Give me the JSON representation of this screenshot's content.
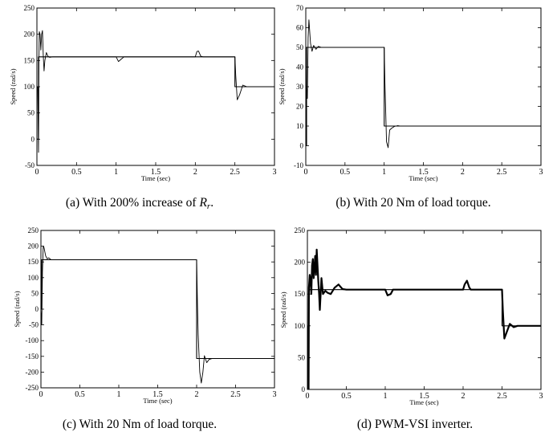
{
  "captions": {
    "a": {
      "pre": "(a) With 200% increase of ",
      "var": "R",
      "sub": "r",
      "post": "."
    },
    "b": "(b) With 20 Nm of load torque.",
    "c": "(c) With 20 Nm of load torque.",
    "d": "(d) PWM-VSI inverter."
  },
  "chart_data": [
    {
      "id": "a",
      "type": "line",
      "xlabel": "Time (sec)",
      "ylabel": "Speed  (rad/s)",
      "xlim": [
        0,
        3
      ],
      "ylim": [
        -50,
        250
      ],
      "xticks": [
        0,
        0.5,
        1,
        1.5,
        2,
        2.5,
        3
      ],
      "xtick_labels": [
        "0",
        "0.5",
        "1",
        "1.5",
        "2",
        "2.5",
        "3"
      ],
      "yticks": [
        -50,
        0,
        50,
        100,
        150,
        200,
        250
      ],
      "ytick_labels": [
        "-50",
        "0",
        "50",
        "100",
        "150",
        "200",
        "250"
      ],
      "series": [
        {
          "role": "reference",
          "x": [
            0,
            0.02,
            0.02,
            2.5,
            2.5,
            3
          ],
          "y": [
            0,
            0,
            157,
            157,
            100,
            100
          ]
        },
        {
          "role": "response",
          "x": [
            0,
            0.01,
            0.02,
            0.025,
            0.03,
            0.04,
            0.05,
            0.06,
            0.07,
            0.08,
            0.09,
            0.1,
            0.12,
            0.14,
            0.16,
            0.2,
            0.3,
            1.0,
            1.03,
            1.06,
            1.1,
            1.2,
            2.0,
            2.02,
            2.04,
            2.07,
            2.1,
            2.5,
            2.51,
            2.53,
            2.56,
            2.6,
            2.65,
            2.7,
            3.0
          ],
          "y": [
            100,
            100,
            -25,
            150,
            205,
            200,
            170,
            200,
            207,
            160,
            130,
            150,
            165,
            158,
            156,
            157,
            157,
            157,
            148,
            152,
            157,
            157,
            157,
            167,
            168,
            158,
            157,
            157,
            122,
            75,
            85,
            103,
            100,
            100,
            100
          ]
        }
      ]
    },
    {
      "id": "b",
      "type": "line",
      "xlabel": "Time (sec)",
      "ylabel": "Speed  (rad/s)",
      "xlim": [
        0,
        3
      ],
      "ylim": [
        -10,
        70
      ],
      "xticks": [
        0,
        0.5,
        1,
        1.5,
        2,
        2.5,
        3
      ],
      "xtick_labels": [
        "0",
        "0.5",
        "1",
        "1.5",
        "2",
        "2.5",
        "3"
      ],
      "yticks": [
        -10,
        0,
        10,
        20,
        30,
        40,
        50,
        60,
        70
      ],
      "ytick_labels": [
        "-10",
        "0",
        "10",
        "20",
        "30",
        "40",
        "50",
        "60",
        "70"
      ],
      "series": [
        {
          "role": "reference",
          "x": [
            0,
            0.01,
            0.01,
            1.0,
            1.0,
            3
          ],
          "y": [
            0,
            0,
            50,
            50,
            10,
            10
          ]
        },
        {
          "role": "response",
          "x": [
            0,
            0.01,
            0.02,
            0.03,
            0.04,
            0.05,
            0.06,
            0.08,
            0.1,
            0.13,
            0.16,
            0.2,
            0.3,
            1.0,
            1.01,
            1.03,
            1.05,
            1.07,
            1.1,
            1.13,
            1.17,
            1.2,
            3.0
          ],
          "y": [
            0,
            30,
            24,
            55,
            64,
            58,
            52,
            48,
            51,
            49,
            50.5,
            50,
            50,
            50,
            32,
            2,
            -1,
            8,
            9,
            9.8,
            10.2,
            10,
            10
          ]
        }
      ]
    },
    {
      "id": "c",
      "type": "line",
      "xlabel": "Time (sec)",
      "ylabel": "Speed  (rad/s)",
      "xlim": [
        0,
        3
      ],
      "ylim": [
        -250,
        250
      ],
      "xticks": [
        0,
        0.5,
        1,
        1.5,
        2,
        2.5,
        3
      ],
      "xtick_labels": [
        "0",
        "0.5",
        "1",
        "1.5",
        "2",
        "2.5",
        "3"
      ],
      "yticks": [
        -250,
        -200,
        -150,
        -100,
        -50,
        0,
        50,
        100,
        150,
        200,
        250
      ],
      "ytick_labels": [
        "-250",
        "-200",
        "-150",
        "-100",
        "-50",
        "0",
        "50",
        "100",
        "150",
        "200",
        "250"
      ],
      "series": [
        {
          "role": "reference",
          "x": [
            0,
            0.01,
            0.01,
            2.0,
            2.0,
            3
          ],
          "y": [
            0,
            0,
            157,
            157,
            -157,
            -157
          ]
        },
        {
          "role": "response",
          "x": [
            0,
            0.01,
            0.02,
            0.03,
            0.04,
            0.06,
            0.08,
            0.1,
            0.13,
            0.17,
            0.25,
            2.0,
            2.01,
            2.02,
            2.04,
            2.06,
            2.08,
            2.1,
            2.13,
            2.16,
            2.2,
            2.25,
            3.0
          ],
          "y": [
            0,
            -50,
            120,
            200,
            195,
            170,
            160,
            163,
            157,
            157,
            157,
            157,
            20,
            -80,
            -200,
            -235,
            -200,
            -148,
            -170,
            -160,
            -157,
            -157,
            -157
          ]
        }
      ]
    },
    {
      "id": "d",
      "type": "line",
      "xlabel": "Time (sec)",
      "ylabel": "Speed (rad/s)",
      "xlim": [
        0,
        3
      ],
      "ylim": [
        0,
        250
      ],
      "xticks": [
        0,
        0.5,
        1,
        1.5,
        2,
        2.5,
        3
      ],
      "xtick_labels": [
        "0",
        "0.5",
        "1",
        "1.5",
        "2",
        "2.5",
        "3"
      ],
      "yticks": [
        0,
        50,
        100,
        150,
        200,
        250
      ],
      "ytick_labels": [
        "0",
        "50",
        "100",
        "150",
        "200",
        "250"
      ],
      "series": [
        {
          "role": "reference",
          "x": [
            0,
            0.02,
            0.02,
            2.5,
            2.5,
            3
          ],
          "y": [
            0,
            0,
            157,
            157,
            100,
            100
          ]
        },
        {
          "role": "response",
          "x": [
            0,
            0.01,
            0.015,
            0.02,
            0.03,
            0.04,
            0.05,
            0.06,
            0.07,
            0.08,
            0.09,
            0.1,
            0.11,
            0.12,
            0.13,
            0.14,
            0.15,
            0.16,
            0.18,
            0.2,
            0.23,
            0.26,
            0.3,
            0.35,
            0.4,
            0.45,
            0.5,
            1.0,
            1.03,
            1.07,
            1.1,
            1.2,
            2.0,
            2.02,
            2.05,
            2.08,
            2.1,
            2.5,
            2.51,
            2.53,
            2.56,
            2.6,
            2.65,
            2.7,
            3.0
          ],
          "y": [
            100,
            0,
            -5,
            160,
            180,
            170,
            150,
            195,
            205,
            175,
            190,
            210,
            180,
            220,
            195,
            170,
            150,
            125,
            175,
            150,
            155,
            152,
            150,
            160,
            165,
            158,
            157,
            157,
            148,
            150,
            157,
            157,
            157,
            165,
            171,
            160,
            157,
            157,
            125,
            80,
            90,
            103,
            98,
            100,
            100
          ]
        }
      ]
    }
  ]
}
